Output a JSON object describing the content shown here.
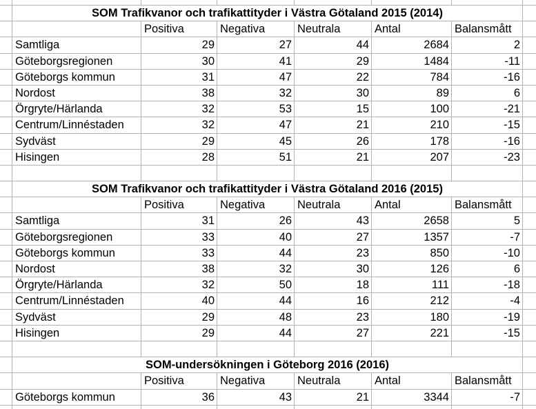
{
  "sheet": {
    "colors": {
      "gridline": "#b2b2b2",
      "text": "#000000",
      "background": "#ffffff"
    },
    "tables": [
      {
        "title": "SOM Trafikvanor och trafikattityder i Västra Götaland 2015 (2014)",
        "columns": [
          "Positiva",
          "Negativa",
          "Neutrala",
          "Antal",
          "Balansmått"
        ],
        "rows": [
          {
            "label": "Samtliga",
            "values": [
              29,
              27,
              44,
              2684,
              2
            ]
          },
          {
            "label": "Göteborgsregionen",
            "values": [
              30,
              41,
              29,
              1484,
              -11
            ]
          },
          {
            "label": "Göteborgs kommun",
            "values": [
              31,
              47,
              22,
              784,
              -16
            ]
          },
          {
            "label": "Nordost",
            "values": [
              38,
              32,
              30,
              89,
              6
            ]
          },
          {
            "label": "Örgryte/Härlanda",
            "values": [
              32,
              53,
              15,
              100,
              -21
            ]
          },
          {
            "label": "Centrum/Linnéstaden",
            "values": [
              32,
              47,
              21,
              210,
              -15
            ]
          },
          {
            "label": "Sydväst",
            "values": [
              29,
              45,
              26,
              178,
              -16
            ]
          },
          {
            "label": "Hisingen",
            "values": [
              28,
              51,
              21,
              207,
              -23
            ]
          }
        ]
      },
      {
        "title": "SOM Trafikvanor och trafikattityder i Västra Götaland 2016 (2015)",
        "columns": [
          "Positiva",
          "Negativa",
          "Neutrala",
          "Antal",
          "Balansmått"
        ],
        "rows": [
          {
            "label": "Samtliga",
            "values": [
              31,
              26,
              43,
              2658,
              5
            ]
          },
          {
            "label": "Göteborgsregionen",
            "values": [
              33,
              40,
              27,
              1357,
              -7
            ]
          },
          {
            "label": "Göteborgs kommun",
            "values": [
              33,
              44,
              23,
              850,
              -10
            ]
          },
          {
            "label": "Nordost",
            "values": [
              38,
              32,
              30,
              126,
              6
            ]
          },
          {
            "label": "Örgryte/Härlanda",
            "values": [
              32,
              50,
              18,
              111,
              -18
            ]
          },
          {
            "label": "Centrum/Linnéstaden",
            "values": [
              40,
              44,
              16,
              212,
              -4
            ]
          },
          {
            "label": "Sydväst",
            "values": [
              29,
              48,
              23,
              180,
              -19
            ]
          },
          {
            "label": "Hisingen",
            "values": [
              29,
              44,
              27,
              221,
              -15
            ]
          }
        ]
      },
      {
        "title": "SOM-undersökningen i Göteborg 2016 (2016)",
        "columns": [
          "Positiva",
          "Negativa",
          "Neutrala",
          "Antal",
          "Balansmått"
        ],
        "rows": [
          {
            "label": "Göteborgs kommun",
            "values": [
              36,
              43,
              21,
              3344,
              -7
            ]
          }
        ]
      }
    ]
  }
}
